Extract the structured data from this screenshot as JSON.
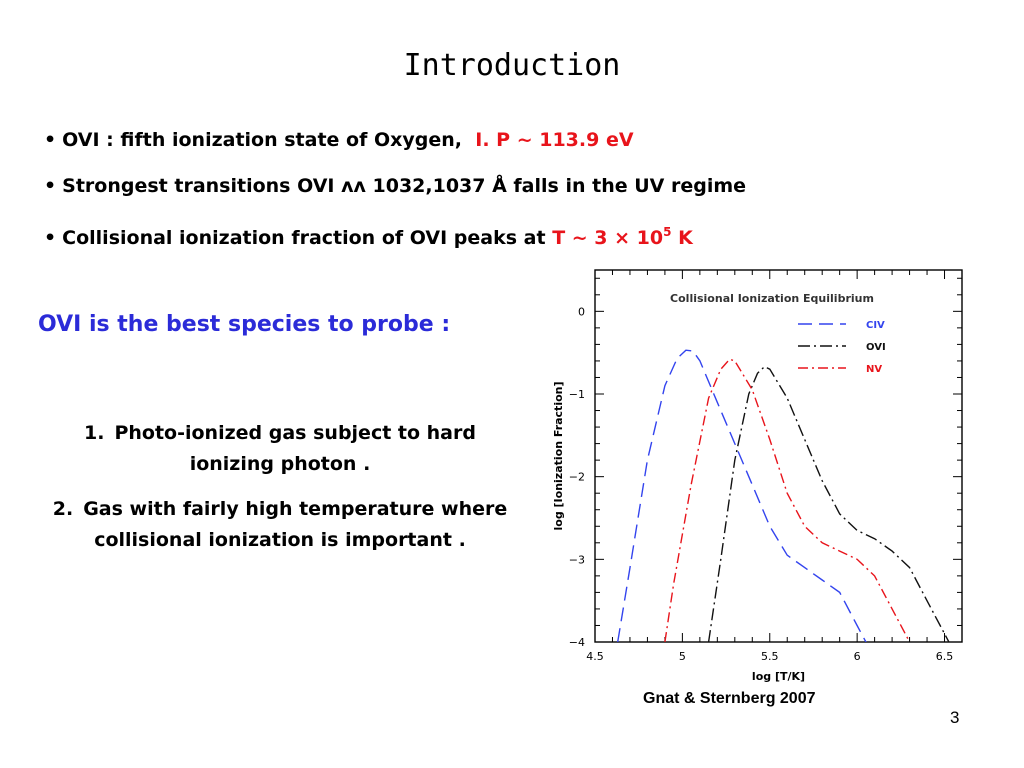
{
  "title": "Introduction",
  "bullets": [
    {
      "text": "OVI : fifth ionization state of Oxygen,",
      "highlight": "I. P ~ 113.9 eV"
    },
    {
      "text": "Strongest transitions OVI ʌʌ 1032,1037 Å falls in the UV regime",
      "highlight": ""
    },
    {
      "text": "Collisional ionization fraction of OVI peaks at",
      "highlight": "T ~ 3 × 10",
      "superscript": "5",
      "highlight_suffix": "K"
    }
  ],
  "bullet_symbol": "•",
  "probe_text": "OVI is the best species to probe :",
  "numbered_items": [
    {
      "num": "1.",
      "text": "Photo-ionized gas subject to hard ionizing photon ."
    },
    {
      "num": "2.",
      "text": "Gas with fairly high temperature where collisional ionization is important ."
    }
  ],
  "caption": "Gnat & Sternberg 2007",
  "page_number": "3",
  "colors": {
    "accent_red": "#e8141b",
    "accent_blue": "#2b2bd8"
  },
  "chart_data": {
    "type": "line",
    "title": "Collisional Ionization Equilibrium",
    "xlabel": "log [T/K]",
    "ylabel": "log [Ionization Fraction]",
    "xlim": [
      4.5,
      6.6
    ],
    "ylim": [
      -4,
      0.5
    ],
    "xticks": [
      4.5,
      5,
      5.5,
      6,
      6.5
    ],
    "xtick_labels": [
      "4.5",
      "5",
      "5.5",
      "6",
      "6.5"
    ],
    "yticks": [
      0,
      -1,
      -2,
      -3,
      -4
    ],
    "ytick_labels": [
      "0",
      "−1",
      "−2",
      "−3",
      "−4"
    ],
    "legend_position": "top-right",
    "series": [
      {
        "name": "CIV",
        "color": "#3344ee",
        "dash": "14,7",
        "x": [
          4.63,
          4.7,
          4.8,
          4.9,
          4.97,
          5.02,
          5.06,
          5.1,
          5.2,
          5.3,
          5.4,
          5.5,
          5.6,
          5.7,
          5.8,
          5.9,
          6.0,
          6.05,
          6.1
        ],
        "y": [
          -4.0,
          -3.1,
          -1.8,
          -0.9,
          -0.57,
          -0.47,
          -0.48,
          -0.6,
          -1.1,
          -1.6,
          -2.1,
          -2.6,
          -2.95,
          -3.1,
          -3.25,
          -3.4,
          -3.8,
          -4.0,
          -4.3
        ]
      },
      {
        "name": "OVI",
        "color": "#111111",
        "dash": "12,4,2,4",
        "x": [
          5.15,
          5.22,
          5.3,
          5.38,
          5.43,
          5.47,
          5.5,
          5.6,
          5.7,
          5.8,
          5.9,
          6.0,
          6.1,
          6.2,
          6.3,
          6.4,
          6.5,
          6.55
        ],
        "y": [
          -4.0,
          -3.0,
          -1.8,
          -1.0,
          -0.75,
          -0.67,
          -0.7,
          -1.05,
          -1.55,
          -2.05,
          -2.45,
          -2.65,
          -2.75,
          -2.9,
          -3.1,
          -3.5,
          -3.9,
          -4.1
        ]
      },
      {
        "name": "NV",
        "color": "#e8141b",
        "dash": "10,4,2,4",
        "x": [
          4.9,
          4.95,
          5.05,
          5.15,
          5.22,
          5.27,
          5.3,
          5.4,
          5.5,
          5.6,
          5.7,
          5.8,
          5.9,
          6.0,
          6.1,
          6.2,
          6.3,
          6.35
        ],
        "y": [
          -4.0,
          -3.3,
          -2.1,
          -1.05,
          -0.7,
          -0.58,
          -0.6,
          -0.95,
          -1.55,
          -2.2,
          -2.6,
          -2.8,
          -2.9,
          -3.0,
          -3.2,
          -3.6,
          -4.0,
          -4.2
        ]
      }
    ]
  }
}
